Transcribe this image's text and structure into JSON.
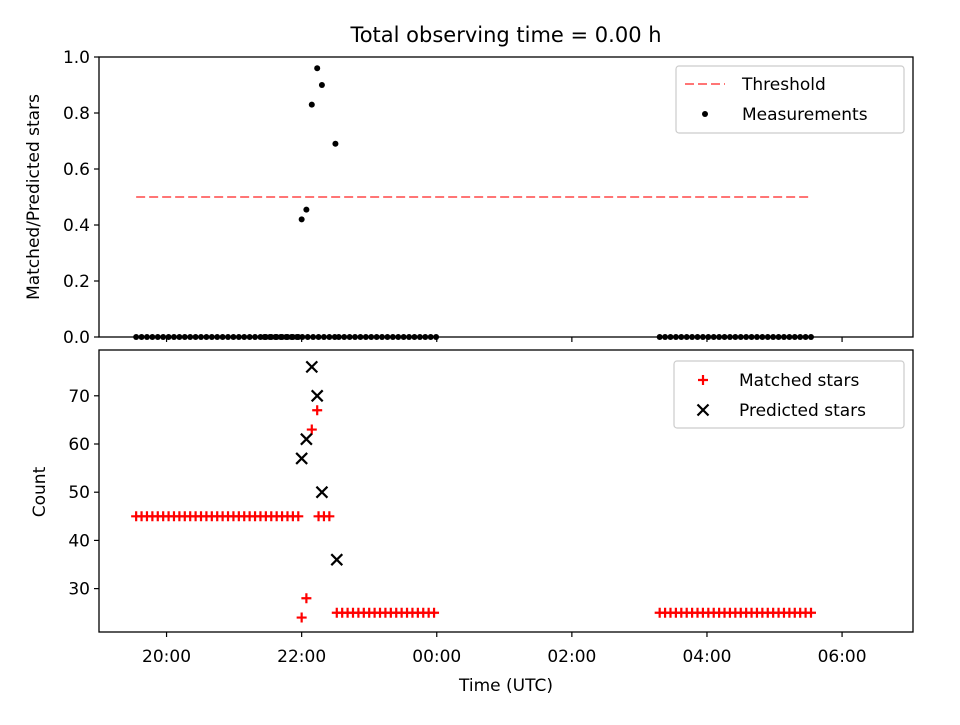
{
  "chart_data": [
    {
      "type": "scatter",
      "title": "Total observing time = 0.00 h",
      "xlabel": "",
      "ylabel": "Matched/Predicted stars",
      "ylim": [
        0,
        1.0
      ],
      "yticks": [
        "0.0",
        "0.2",
        "0.4",
        "0.6",
        "0.8",
        "1.0"
      ],
      "x_unit": "hours since 00:00 UTC (continues past midnight)",
      "xlim": [
        -5.0,
        7.05
      ],
      "legend": {
        "placement": "top-right",
        "entries": [
          "Threshold",
          "Measurements"
        ]
      },
      "threshold": {
        "name": "Threshold",
        "value": 0.5,
        "x_range": [
          -4.45,
          5.55
        ],
        "color": "#ff7575"
      },
      "measurements": {
        "name": "Measurements",
        "color": "#000000",
        "x": [
          -2.0,
          -1.93,
          -1.85,
          -1.77,
          -1.7,
          -1.5,
          -0.73,
          -0.65,
          -0.55,
          -0.45,
          -0.35,
          -0.25,
          -0.17,
          -0.1,
          -0.02,
          3.3,
          3.4,
          3.5,
          3.6,
          3.7,
          3.8,
          3.9,
          4.0,
          4.1,
          4.2,
          4.3,
          4.4,
          4.5,
          4.6,
          4.7,
          4.8,
          4.9,
          5.0,
          5.1,
          5.2,
          5.3,
          5.4,
          5.5
        ],
        "y": [
          0.42,
          0.455,
          0.83,
          0.96,
          0.9,
          0.69,
          0,
          0,
          0,
          0,
          0,
          0,
          0,
          0,
          0,
          0,
          0,
          0,
          0,
          0,
          0,
          0,
          0,
          0,
          0,
          0,
          0,
          0,
          0,
          0,
          0,
          0,
          0,
          0,
          0,
          0,
          0,
          0
        ],
        "zero_runs": [
          [
            -4.45,
            -2.05,
            0.08
          ],
          [
            -2.55,
            -1.5,
            0.08
          ],
          [
            -1.45,
            -0.02,
            0.08
          ],
          [
            3.3,
            5.55,
            0.08
          ]
        ]
      }
    },
    {
      "type": "scatter",
      "title": "",
      "xlabel": "Time (UTC)",
      "ylabel": "Count",
      "ylim": [
        21,
        79.5
      ],
      "yticks": [
        "30",
        "40",
        "50",
        "60",
        "70"
      ],
      "xticks": [
        "20:00",
        "22:00",
        "00:00",
        "02:00",
        "04:00",
        "06:00"
      ],
      "xtick_values": [
        -4,
        -2,
        0,
        2,
        4,
        6
      ],
      "legend": {
        "placement": "top-right",
        "entries": [
          "Matched stars",
          "Predicted stars"
        ]
      },
      "matched": {
        "name": "Matched stars",
        "color": "#ff0000",
        "runs": [
          [
            -4.45,
            -2.05,
            45,
            0.08
          ],
          [
            -1.75,
            -1.55,
            45,
            0.08
          ],
          [
            -1.48,
            -0.02,
            25,
            0.08
          ],
          [
            3.3,
            5.55,
            25,
            0.08
          ]
        ],
        "points": [
          [
            -2.0,
            24
          ],
          [
            -1.93,
            28
          ],
          [
            -1.85,
            63
          ],
          [
            -1.77,
            67
          ]
        ]
      },
      "predicted": {
        "name": "Predicted stars",
        "color": "#000000",
        "points": [
          [
            -2.0,
            57
          ],
          [
            -1.93,
            61
          ],
          [
            -1.85,
            76
          ],
          [
            -1.77,
            70
          ],
          [
            -1.7,
            50
          ],
          [
            -1.48,
            36
          ]
        ]
      }
    }
  ]
}
